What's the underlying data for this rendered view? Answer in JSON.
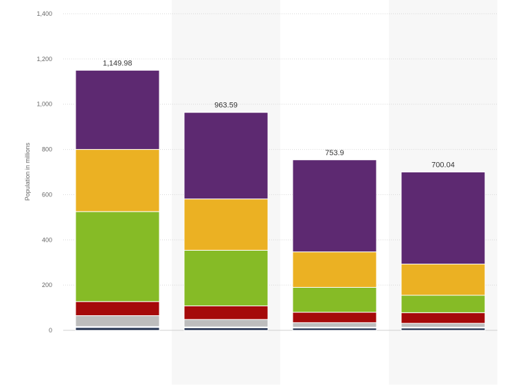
{
  "chart_data": {
    "type": "bar",
    "stacked": true,
    "title": "",
    "xlabel": "",
    "ylabel": "Population in millions",
    "ylim": [
      0,
      1400
    ],
    "yticks": [
      0,
      200,
      400,
      600,
      800,
      1000,
      1200,
      1400
    ],
    "ytick_labels": [
      "0",
      "200",
      "400",
      "600",
      "800",
      "1,000",
      "1,200",
      "1,400"
    ],
    "grid": true,
    "legend": "none",
    "categories": [
      "",
      "",
      "",
      ""
    ],
    "totals": [
      1149.98,
      963.59,
      753.9,
      700.04
    ],
    "total_labels": [
      "1,149.98",
      "963.59",
      "753.9",
      "700.04"
    ],
    "series": [
      {
        "color": "#1b2a49",
        "values": [
          12,
          11,
          10,
          10
        ]
      },
      {
        "color": "#c9d6e8",
        "values": [
          5,
          4,
          4,
          4
        ]
      },
      {
        "color": "#bdbdbd",
        "values": [
          48,
          33,
          20,
          17
        ]
      },
      {
        "color": "#a50a0a",
        "values": [
          62,
          60,
          46,
          47
        ]
      },
      {
        "color": "#86bb26",
        "values": [
          398,
          246,
          110,
          77
        ]
      },
      {
        "color": "#ebb123",
        "values": [
          275,
          227,
          157,
          138
        ]
      },
      {
        "color": "#5d2971",
        "values": [
          349.98,
          382.59,
          406.9,
          407.04
        ]
      }
    ]
  }
}
